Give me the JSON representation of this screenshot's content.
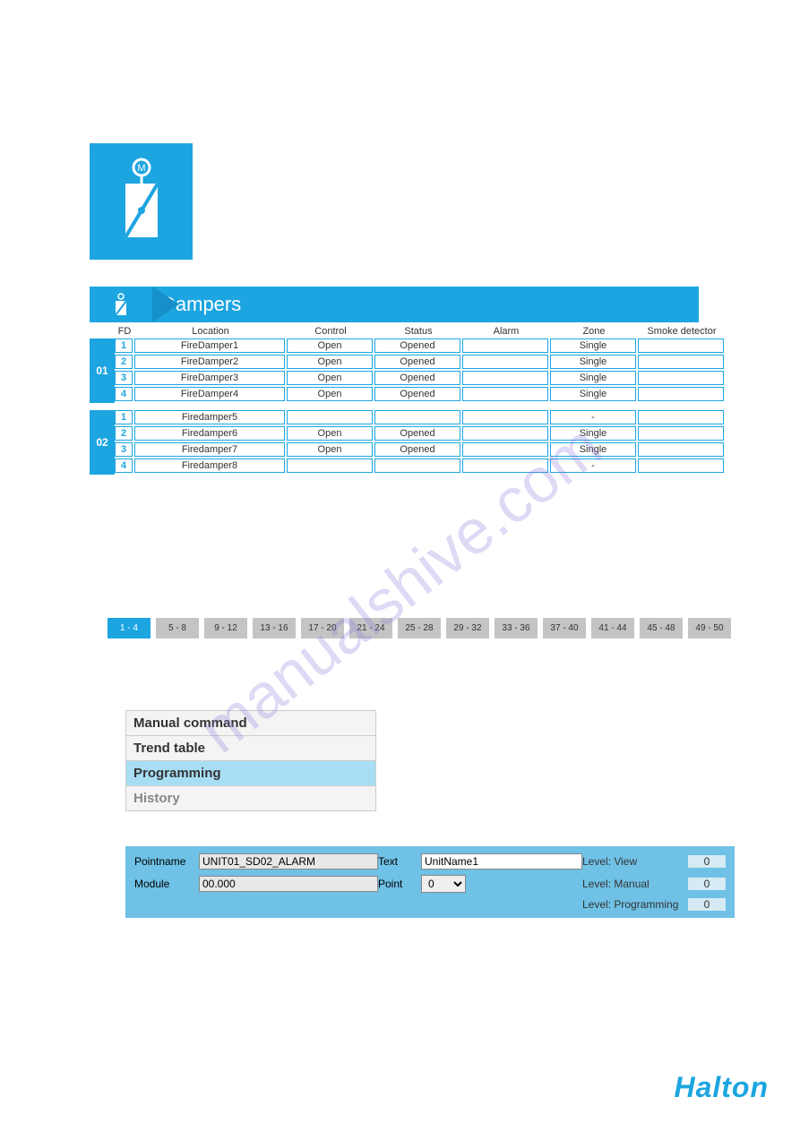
{
  "link": {
    "href": "#",
    "text": " "
  },
  "panel_title": "Dampers",
  "headers": {
    "fd": "FD",
    "location": "Location",
    "control": "Control",
    "status": "Status",
    "alarm": "Alarm",
    "zone": "Zone",
    "smoke": "Smoke detector"
  },
  "groups": [
    {
      "num": "01",
      "rows": [
        {
          "fd": "1",
          "loc": "FireDamper1",
          "ctl": "Open",
          "sts": "Opened",
          "alm": "",
          "zn": "Single",
          "smk": ""
        },
        {
          "fd": "2",
          "loc": "FireDamper2",
          "ctl": "Open",
          "sts": "Opened",
          "alm": "",
          "zn": "Single",
          "smk": ""
        },
        {
          "fd": "3",
          "loc": "FireDamper3",
          "ctl": "Open",
          "sts": "Opened",
          "alm": "",
          "zn": "Single",
          "smk": ""
        },
        {
          "fd": "4",
          "loc": "FireDamper4",
          "ctl": "Open",
          "sts": "Opened",
          "alm": "",
          "zn": "Single",
          "smk": ""
        }
      ]
    },
    {
      "num": "02",
      "rows": [
        {
          "fd": "1",
          "loc": "Firedamper5",
          "ctl": "",
          "sts": "",
          "alm": "",
          "zn": "-",
          "smk": ""
        },
        {
          "fd": "2",
          "loc": "Firedamper6",
          "ctl": "Open",
          "sts": "Opened",
          "alm": "",
          "zn": "Single",
          "smk": ""
        },
        {
          "fd": "3",
          "loc": "Firedamper7",
          "ctl": "Open",
          "sts": "Opened",
          "alm": "",
          "zn": "Single",
          "smk": ""
        },
        {
          "fd": "4",
          "loc": "Firedamper8",
          "ctl": "",
          "sts": "",
          "alm": "",
          "zn": "-",
          "smk": ""
        }
      ]
    }
  ],
  "pages": [
    {
      "label": "1 - 4",
      "active": true
    },
    {
      "label": "5 - 8",
      "active": false
    },
    {
      "label": "9 - 12",
      "active": false
    },
    {
      "label": "13 - 16",
      "active": false
    },
    {
      "label": "17 - 20",
      "active": false
    },
    {
      "label": "21 - 24",
      "active": false
    },
    {
      "label": "25 - 28",
      "active": false
    },
    {
      "label": "29 - 32",
      "active": false
    },
    {
      "label": "33 - 36",
      "active": false
    },
    {
      "label": "37 - 40",
      "active": false
    },
    {
      "label": "41 - 44",
      "active": false
    },
    {
      "label": "45 - 48",
      "active": false
    },
    {
      "label": "49 - 50",
      "active": false
    }
  ],
  "menu": [
    {
      "label": "Manual command",
      "sel": false,
      "dim": false
    },
    {
      "label": "Trend table",
      "sel": false,
      "dim": false
    },
    {
      "label": "Programming",
      "sel": true,
      "dim": false
    },
    {
      "label": "History",
      "sel": false,
      "dim": true
    }
  ],
  "prog": {
    "pointname_label": "Pointname",
    "pointname_value": "UNIT01_SD02_ALARM",
    "text_label": "Text",
    "text_value": "UnitName1",
    "module_label": "Module",
    "module_value": "00.000",
    "point_label": "Point",
    "point_value": "0",
    "lvl_view_label": "Level: View",
    "lvl_view_value": "0",
    "lvl_manual_label": "Level: Manual",
    "lvl_manual_value": "0",
    "lvl_prog_label": "Level: Programming",
    "lvl_prog_value": "0"
  },
  "brand": "Halton",
  "watermark": "manualshive.com"
}
